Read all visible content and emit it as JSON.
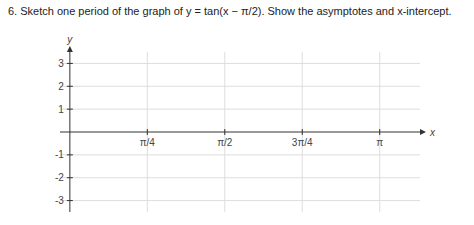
{
  "chart_data": {
    "type": "line",
    "title": "6.  Sketch one period of the graph of y = tan(x − π/2).  Show the asymptotes and x-intercept.",
    "xlabel": "x",
    "ylabel": "y",
    "xlim": [
      -0.1,
      3.55
    ],
    "ylim": [
      -3.5,
      3.5
    ],
    "xticks": [
      {
        "value": 0.7853981633974483,
        "label": "π/4"
      },
      {
        "value": 1.5707963267948966,
        "label": "π/2"
      },
      {
        "value": 2.356194490192345,
        "label": "3π/4"
      },
      {
        "value": 3.141592653589793,
        "label": "π"
      }
    ],
    "yticks": [
      -3,
      -2,
      -1,
      1,
      2,
      3
    ],
    "grid": true
  }
}
